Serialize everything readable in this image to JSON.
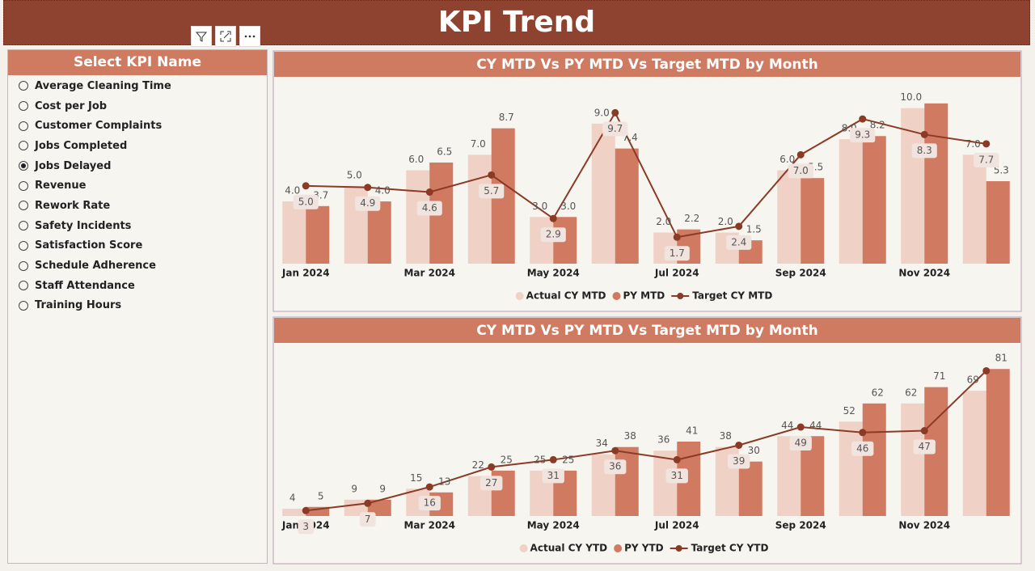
{
  "header": {
    "title": "KPI Trend"
  },
  "slicer": {
    "title": "Select KPI Name",
    "items": [
      {
        "label": "Average Cleaning Time",
        "selected": false
      },
      {
        "label": "Cost per Job",
        "selected": false
      },
      {
        "label": "Customer Complaints",
        "selected": false
      },
      {
        "label": "Jobs Completed",
        "selected": false
      },
      {
        "label": "Jobs Delayed",
        "selected": true
      },
      {
        "label": "Revenue",
        "selected": false
      },
      {
        "label": "Rework Rate",
        "selected": false
      },
      {
        "label": "Safety Incidents",
        "selected": false
      },
      {
        "label": "Satisfaction Score",
        "selected": false
      },
      {
        "label": "Schedule Adherence",
        "selected": false
      },
      {
        "label": "Staff Attendance",
        "selected": false
      },
      {
        "label": "Training Hours",
        "selected": false
      }
    ]
  },
  "chart_data": [
    {
      "type": "combo",
      "title": "CY MTD Vs PY MTD Vs Target MTD by Month",
      "categories": [
        "Jan 2024",
        null,
        "Mar 2024",
        null,
        "May 2024",
        null,
        "Jul 2024",
        null,
        "Sep 2024",
        null,
        "Nov 2024",
        null
      ],
      "ylim": [
        0,
        10.5
      ],
      "series": [
        {
          "name": "Actual CY MTD",
          "type": "bar",
          "color": "#f0d1c5",
          "values": [
            4.0,
            5.0,
            6.0,
            7.0,
            3.0,
            9.0,
            2.0,
            2.0,
            6.0,
            8.0,
            10.0,
            7.0
          ],
          "value_labels": [
            "4.0",
            "5.0",
            "6.0",
            "7.0",
            "3.0",
            "9.0",
            "2.0",
            "2.0",
            "6.0",
            "8.0",
            "10.0",
            "7.0"
          ]
        },
        {
          "name": "PY MTD",
          "type": "bar",
          "color": "#d07a62",
          "values": [
            3.7,
            4.0,
            6.5,
            8.7,
            3.0,
            7.4,
            2.2,
            1.5,
            5.5,
            8.2,
            10.3,
            5.3
          ],
          "value_labels": [
            "3.7",
            "4.0",
            "6.5",
            "8.7",
            "3.0",
            "7.4",
            "2.2",
            "1.5",
            "5.5",
            "8.2",
            null,
            "5.3"
          ]
        },
        {
          "name": "Target CY MTD",
          "type": "line",
          "color": "#8b3a26",
          "values": [
            5.0,
            4.9,
            4.6,
            5.7,
            2.9,
            9.7,
            1.7,
            2.4,
            7.0,
            9.3,
            8.3,
            7.7
          ],
          "value_labels": [
            "5.0",
            "4.9",
            "4.6",
            "5.7",
            "2.9",
            "9.7",
            "1.7",
            "2.4",
            "7.0",
            "9.3",
            "8.3",
            "7.7"
          ]
        }
      ]
    },
    {
      "type": "combo",
      "title": "CY MTD Vs PY MTD Vs Target MTD by Month",
      "categories": [
        "Jan 2024",
        null,
        "Mar 2024",
        null,
        "May 2024",
        null,
        "Jul 2024",
        null,
        "Sep 2024",
        null,
        "Nov 2024",
        null
      ],
      "ylim": [
        0,
        86
      ],
      "series": [
        {
          "name": "Actual CY YTD",
          "type": "bar",
          "color": "#f0d1c5",
          "values": [
            4,
            9,
            15,
            22,
            25,
            34,
            36,
            38,
            44,
            52,
            62,
            69
          ]
        },
        {
          "name": "PY YTD",
          "type": "bar",
          "color": "#d07a62",
          "values": [
            5,
            9,
            13,
            25,
            25,
            38,
            41,
            30,
            44,
            62,
            71,
            81
          ]
        },
        {
          "name": "Target CY YTD",
          "type": "line",
          "color": "#8b3a26",
          "values": [
            3,
            7,
            16,
            27,
            31,
            36,
            31,
            39,
            49,
            46,
            47,
            80
          ],
          "value_labels": [
            "3",
            "7",
            "16",
            "27",
            "31",
            "36",
            "31",
            "39",
            "49",
            "46",
            "47",
            null
          ]
        }
      ]
    }
  ]
}
